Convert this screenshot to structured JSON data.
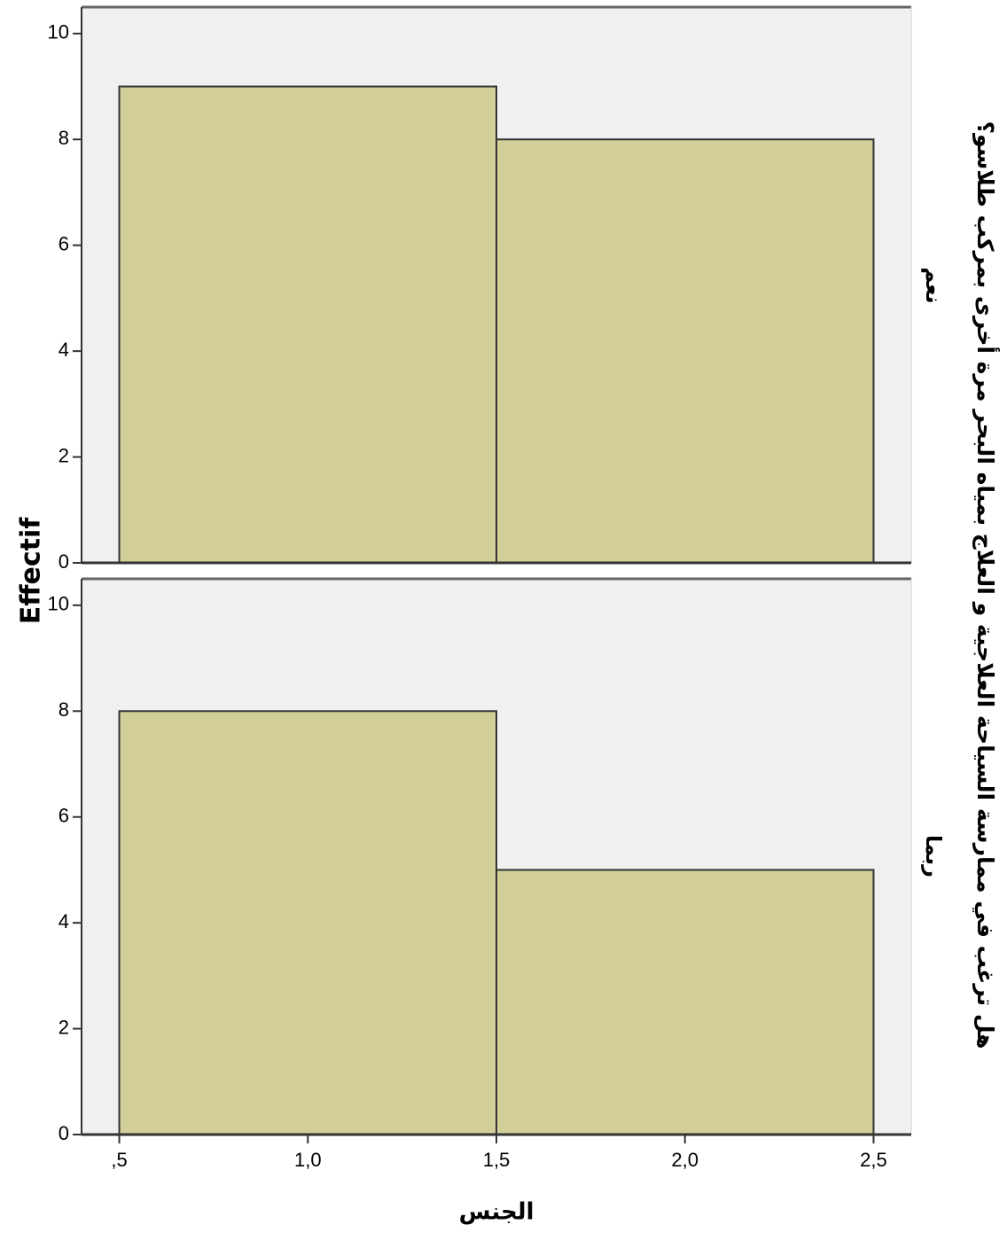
{
  "chart_data": {
    "type": "bar",
    "xlabel": "الجنس",
    "ylabel": "Effectif",
    "group_label": "هل ترغب في ممارسة السياحة العلاجية و العلاج بمياه البحر مرة أخرى بمركب طلاسو؟",
    "x_ticks": [
      ",5",
      "1,0",
      "1,5",
      "2,0",
      "2,5"
    ],
    "x_tick_values": [
      0.5,
      1.0,
      1.5,
      2.0,
      2.5
    ],
    "xlim": [
      0.4,
      2.6
    ],
    "ylim": [
      0,
      10.5
    ],
    "y_ticks": [
      0,
      2,
      4,
      6,
      8,
      10
    ],
    "bin_edges": [
      0.5,
      1.5,
      2.5
    ],
    "grid": false,
    "colors": {
      "bar_fill": "#d3cf99",
      "bar_stroke": "#333333",
      "panel_bg": "#f0f0f0",
      "frame": "#666666"
    },
    "panels": [
      {
        "label": "نعم",
        "values": [
          9,
          8
        ]
      },
      {
        "label": "ربما",
        "values": [
          8,
          5
        ]
      }
    ]
  }
}
